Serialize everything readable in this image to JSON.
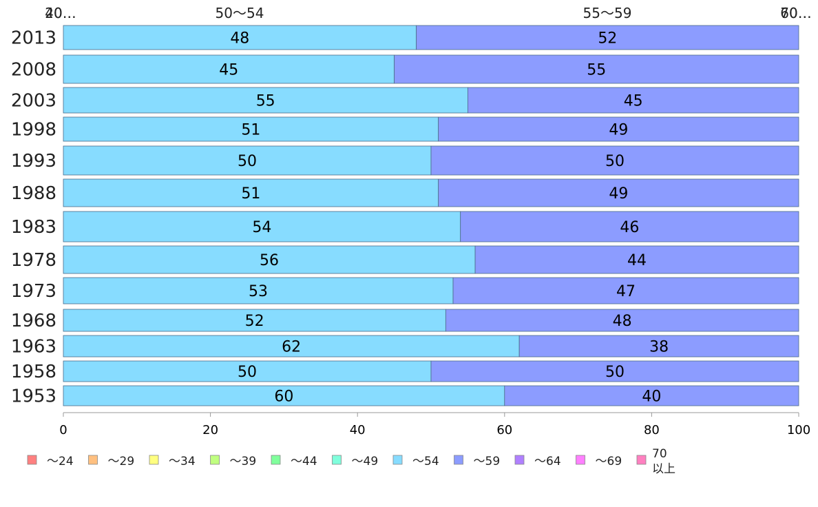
{
  "chart_data": {
    "type": "bar",
    "orientation": "horizontal",
    "stacked": true,
    "categories": [
      "2013",
      "2008",
      "2003",
      "1998",
      "1993",
      "1988",
      "1983",
      "1978",
      "1973",
      "1968",
      "1963",
      "1958",
      "1953"
    ],
    "series": [
      {
        "name": "〜54",
        "color": "#87dcff",
        "values": [
          48,
          45,
          55,
          51,
          50,
          51,
          54,
          56,
          53,
          52,
          62,
          50,
          60
        ]
      },
      {
        "name": "〜59",
        "color": "#8c9cff",
        "values": [
          52,
          55,
          45,
          49,
          50,
          49,
          46,
          44,
          47,
          48,
          38,
          50,
          40
        ]
      }
    ],
    "xlim": [
      0,
      100
    ],
    "xticks": [
      "0",
      "20",
      "40",
      "60",
      "80",
      "100"
    ],
    "top_labels": [
      "20…",
      "40…",
      "50〜54",
      "55〜59",
      "60…",
      "70…"
    ],
    "legend": {
      "placement": "bottom",
      "items": [
        {
          "label": "〜24",
          "color": "#ff8080"
        },
        {
          "label": "〜29",
          "color": "#ffc080"
        },
        {
          "label": "〜34",
          "color": "#ffff80"
        },
        {
          "label": "〜39",
          "color": "#c0ff80"
        },
        {
          "label": "〜44",
          "color": "#80ff9c"
        },
        {
          "label": "〜49",
          "color": "#80ffdc"
        },
        {
          "label": "〜54",
          "color": "#87dcff"
        },
        {
          "label": "〜59",
          "color": "#8c9cff"
        },
        {
          "label": "〜64",
          "color": "#b080ff"
        },
        {
          "label": "〜69",
          "color": "#ff80ff"
        },
        {
          "label": "70",
          "label2": "以上",
          "color": "#ff80c0"
        }
      ]
    }
  }
}
